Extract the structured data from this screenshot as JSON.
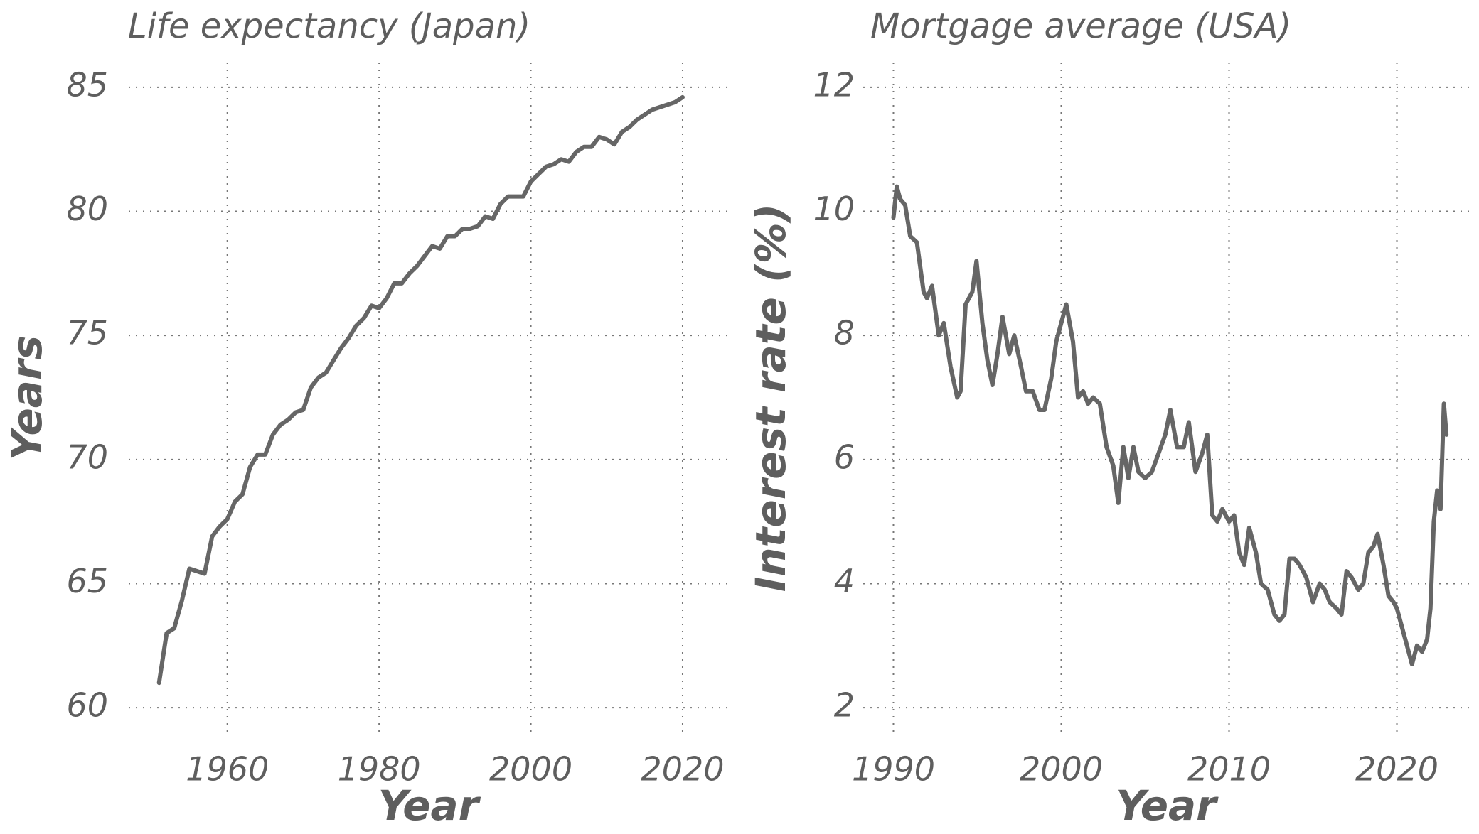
{
  "chart_data": [
    {
      "type": "line",
      "title": "Life expectancy (Japan)",
      "x_label": "Year",
      "y_label": "Years",
      "x": [
        1951,
        1952,
        1953,
        1954,
        1955,
        1956,
        1957,
        1958,
        1959,
        1960,
        1961,
        1962,
        1963,
        1964,
        1965,
        1966,
        1967,
        1968,
        1969,
        1970,
        1971,
        1972,
        1973,
        1974,
        1975,
        1976,
        1977,
        1978,
        1979,
        1980,
        1981,
        1982,
        1983,
        1984,
        1985,
        1986,
        1987,
        1988,
        1989,
        1990,
        1991,
        1992,
        1993,
        1994,
        1995,
        1996,
        1997,
        1998,
        1999,
        2000,
        2001,
        2002,
        2003,
        2004,
        2005,
        2006,
        2007,
        2008,
        2009,
        2010,
        2011,
        2012,
        2013,
        2014,
        2015,
        2016,
        2017,
        2018,
        2019,
        2020
      ],
      "series": [
        {
          "color": "#666666",
          "values": [
            61.0,
            63.0,
            63.2,
            64.3,
            65.6,
            65.5,
            65.4,
            66.9,
            67.3,
            67.6,
            68.3,
            68.6,
            69.7,
            70.2,
            70.2,
            71.0,
            71.4,
            71.6,
            71.9,
            72.0,
            72.9,
            73.3,
            73.5,
            74.0,
            74.5,
            74.9,
            75.4,
            75.7,
            76.2,
            76.1,
            76.5,
            77.1,
            77.1,
            77.5,
            77.8,
            78.2,
            78.6,
            78.5,
            79.0,
            79.0,
            79.3,
            79.3,
            79.4,
            79.8,
            79.7,
            80.3,
            80.6,
            80.6,
            80.6,
            81.2,
            81.5,
            81.8,
            81.9,
            82.1,
            82.0,
            82.4,
            82.6,
            82.6,
            83.0,
            82.9,
            82.7,
            83.2,
            83.4,
            83.7,
            83.9,
            84.1,
            84.2,
            84.3,
            84.4,
            84.6
          ]
        }
      ],
      "xlim": [
        1947,
        2026
      ],
      "xticks": [
        1960,
        1980,
        2000,
        2020
      ],
      "ylim": [
        59,
        86
      ],
      "yticks": [
        60,
        65,
        70,
        75,
        80,
        85
      ],
      "grid": true
    },
    {
      "type": "line",
      "title": "Mortgage average (USA)",
      "x_label": "Year",
      "y_label": "Interest rate (%)",
      "x": [
        1990.0,
        1990.2,
        1990.4,
        1990.7,
        1991.0,
        1991.4,
        1991.8,
        1992.0,
        1992.3,
        1992.7,
        1993.0,
        1993.4,
        1993.8,
        1994.0,
        1994.3,
        1994.7,
        1994.95,
        1995.3,
        1995.6,
        1995.9,
        1996.2,
        1996.5,
        1996.9,
        1997.2,
        1997.6,
        1997.9,
        1998.3,
        1998.7,
        1999.0,
        1999.4,
        1999.7,
        2000.0,
        2000.3,
        2000.7,
        2001.0,
        2001.3,
        2001.6,
        2001.9,
        2002.3,
        2002.7,
        2003.1,
        2003.4,
        2003.7,
        2004.0,
        2004.3,
        2004.6,
        2005.0,
        2005.4,
        2005.8,
        2006.2,
        2006.5,
        2006.9,
        2007.3,
        2007.6,
        2008.0,
        2008.4,
        2008.7,
        2009.0,
        2009.3,
        2009.6,
        2010.0,
        2010.3,
        2010.6,
        2010.9,
        2011.2,
        2011.6,
        2011.9,
        2012.3,
        2012.7,
        2013.0,
        2013.3,
        2013.6,
        2013.9,
        2014.2,
        2014.6,
        2015.0,
        2015.4,
        2015.7,
        2016.0,
        2016.4,
        2016.7,
        2017.0,
        2017.3,
        2017.7,
        2018.0,
        2018.3,
        2018.6,
        2018.85,
        2019.2,
        2019.5,
        2019.8,
        2020.0,
        2020.3,
        2020.6,
        2020.9,
        2021.2,
        2021.5,
        2021.8,
        2022.0,
        2022.2,
        2022.4,
        2022.6,
        2022.8,
        2022.95
      ],
      "series": [
        {
          "color": "#666666",
          "values": [
            9.9,
            10.4,
            10.2,
            10.1,
            9.6,
            9.5,
            8.7,
            8.6,
            8.8,
            8.0,
            8.2,
            7.5,
            7.0,
            7.1,
            8.5,
            8.7,
            9.2,
            8.2,
            7.6,
            7.2,
            7.7,
            8.3,
            7.7,
            8.0,
            7.5,
            7.1,
            7.1,
            6.8,
            6.8,
            7.3,
            7.9,
            8.2,
            8.5,
            7.9,
            7.0,
            7.1,
            6.9,
            7.0,
            6.9,
            6.2,
            5.9,
            5.3,
            6.2,
            5.7,
            6.2,
            5.8,
            5.7,
            5.8,
            6.1,
            6.4,
            6.8,
            6.2,
            6.2,
            6.6,
            5.8,
            6.1,
            6.4,
            5.1,
            5.0,
            5.2,
            5.0,
            5.1,
            4.5,
            4.3,
            4.9,
            4.5,
            4.0,
            3.9,
            3.5,
            3.4,
            3.5,
            4.4,
            4.4,
            4.3,
            4.1,
            3.7,
            4.0,
            3.9,
            3.7,
            3.6,
            3.5,
            4.2,
            4.1,
            3.9,
            4.0,
            4.5,
            4.6,
            4.8,
            4.3,
            3.8,
            3.7,
            3.6,
            3.3,
            3.0,
            2.7,
            3.0,
            2.9,
            3.1,
            3.6,
            5.0,
            5.5,
            5.2,
            6.9,
            6.4
          ]
        }
      ],
      "xlim": [
        1988.2,
        2024.3
      ],
      "xticks": [
        1990,
        2000,
        2010,
        2020
      ],
      "ylim": [
        1.6,
        12.4
      ],
      "yticks": [
        2,
        4,
        6,
        8,
        10,
        12
      ],
      "grid": true
    }
  ]
}
